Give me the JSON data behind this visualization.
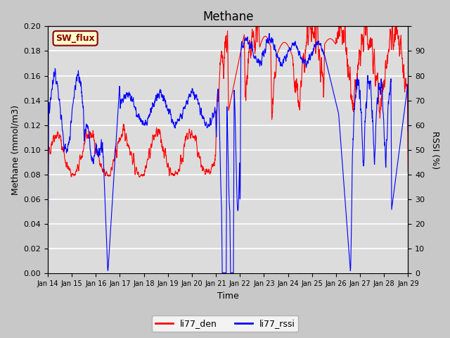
{
  "title": "Methane",
  "ylabel_left": "Methane (mmol/m3)",
  "ylabel_right": "RSSI (%)",
  "xlabel": "Time",
  "ylim_left": [
    0.0,
    0.2
  ],
  "color_red": "#ff0000",
  "color_blue": "#0000ff",
  "label_red": "li77_den",
  "label_blue": "li77_rssi",
  "sw_flux_label": "SW_flux",
  "sw_flux_bg": "#ffffcc",
  "sw_flux_edge": "#8b0000",
  "x_tick_labels": [
    "Jan 14",
    "Jan 15",
    "Jan 16",
    "Jan 17",
    "Jan 18",
    "Jan 19",
    "Jan 20",
    "Jan 21",
    "Jan 22",
    "Jan 23",
    "Jan 24",
    "Jan 25",
    "Jan 26",
    "Jan 27",
    "Jan 28",
    "Jan 29"
  ],
  "yticks_left": [
    0.0,
    0.02,
    0.04,
    0.06,
    0.08,
    0.1,
    0.12,
    0.14,
    0.16,
    0.18,
    0.2
  ],
  "ytick_labels_left": [
    "0.00",
    "0.02",
    "0.04",
    "0.06",
    "0.08",
    "0.10",
    "0.12",
    "0.14",
    "0.16",
    "0.18",
    "0.20"
  ],
  "yticks_right_vals": [
    0.0,
    0.02,
    0.04,
    0.06,
    0.08,
    0.1,
    0.12,
    0.14,
    0.16,
    0.18,
    0.2
  ],
  "ytick_labels_right": [
    "0",
    "10",
    "20",
    "30",
    "40",
    "50",
    "60",
    "70",
    "80",
    "90",
    ""
  ],
  "n_points": 2000
}
